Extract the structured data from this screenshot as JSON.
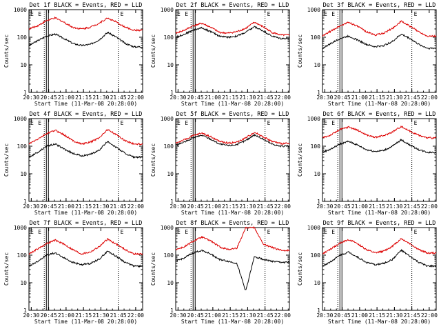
{
  "chart_data": [
    {
      "type": "line",
      "title": "Det 1f BLACK = Events, RED = LLD",
      "xlabel": "Start Time (11-Mar-08 20:28:00)",
      "ylabel": "Counts/sec",
      "series": [
        {
          "name": "BLACK = Events",
          "color": "#000000",
          "values": [
            50,
            75,
            110,
            130,
            90,
            60,
            50,
            55,
            80,
            150,
            100,
            60,
            45,
            45
          ]
        },
        {
          "name": "RED = LLD",
          "color": "#dd0000",
          "values": [
            200,
            260,
            400,
            500,
            350,
            230,
            200,
            230,
            320,
            500,
            350,
            230,
            180,
            180
          ]
        }
      ]
    },
    {
      "type": "line",
      "title": "Det 2f BLACK = Events, RED = LLD",
      "xlabel": "Start Time (11-Mar-08 20:28:00)",
      "ylabel": "Counts/sec",
      "series": [
        {
          "name": "BLACK = Events",
          "color": "#000000",
          "values": [
            100,
            130,
            180,
            220,
            160,
            110,
            100,
            110,
            150,
            240,
            170,
            110,
            90,
            90
          ]
        },
        {
          "name": "RED = LLD",
          "color": "#dd0000",
          "values": [
            140,
            180,
            260,
            320,
            230,
            150,
            140,
            160,
            210,
            350,
            240,
            150,
            120,
            120
          ]
        }
      ]
    },
    {
      "type": "line",
      "title": "Det 3f BLACK = Events, RED = LLD",
      "xlabel": "Start Time (11-Mar-08 20:28:00)",
      "ylabel": "Counts/sec",
      "series": [
        {
          "name": "BLACK = Events",
          "color": "#000000",
          "values": [
            40,
            60,
            90,
            110,
            80,
            55,
            45,
            50,
            70,
            130,
            90,
            55,
            40,
            40
          ]
        },
        {
          "name": "RED = LLD",
          "color": "#dd0000",
          "values": [
            110,
            170,
            260,
            350,
            250,
            160,
            120,
            140,
            210,
            380,
            250,
            160,
            110,
            110
          ]
        }
      ]
    },
    {
      "type": "line",
      "title": "Det 4f BLACK = Events, RED = LLD",
      "xlabel": "Start Time (11-Mar-08 20:28:00)",
      "ylabel": "Counts/sec",
      "series": [
        {
          "name": "BLACK = Events",
          "color": "#000000",
          "values": [
            40,
            60,
            100,
            120,
            80,
            55,
            45,
            50,
            70,
            150,
            90,
            55,
            40,
            40
          ]
        },
        {
          "name": "RED = LLD",
          "color": "#dd0000",
          "values": [
            120,
            180,
            280,
            380,
            260,
            160,
            120,
            140,
            200,
            400,
            260,
            160,
            120,
            120
          ]
        }
      ]
    },
    {
      "type": "line",
      "title": "Det 5f BLACK = Events, RED = LLD",
      "xlabel": "Start Time (11-Mar-08 20:28:00)",
      "ylabel": "Counts/sec",
      "series": [
        {
          "name": "BLACK = Events",
          "color": "#000000",
          "values": [
            110,
            140,
            200,
            250,
            180,
            120,
            105,
            115,
            160,
            260,
            180,
            120,
            100,
            100
          ]
        },
        {
          "name": "RED = LLD",
          "color": "#dd0000",
          "values": [
            130,
            170,
            240,
            300,
            220,
            150,
            130,
            140,
            200,
            320,
            220,
            150,
            125,
            125
          ]
        }
      ]
    },
    {
      "type": "line",
      "title": "Det 6f BLACK = Events, RED = LLD",
      "xlabel": "Start Time (11-Mar-08 20:28:00)",
      "ylabel": "Counts/sec",
      "series": [
        {
          "name": "BLACK = Events",
          "color": "#000000",
          "values": [
            60,
            80,
            120,
            150,
            110,
            75,
            65,
            70,
            100,
            170,
            110,
            75,
            60,
            60
          ]
        },
        {
          "name": "RED = LLD",
          "color": "#dd0000",
          "values": [
            200,
            260,
            400,
            500,
            380,
            260,
            210,
            240,
            330,
            520,
            350,
            250,
            200,
            200
          ]
        }
      ]
    },
    {
      "type": "line",
      "title": "Det 7f BLACK = Events, RED = LLD",
      "xlabel": "Start Time (11-Mar-08 20:28:00)",
      "ylabel": "Counts/sec",
      "series": [
        {
          "name": "BLACK = Events",
          "color": "#000000",
          "values": [
            40,
            60,
            100,
            120,
            80,
            55,
            45,
            50,
            70,
            140,
            90,
            55,
            40,
            40
          ]
        },
        {
          "name": "RED = LLD",
          "color": "#dd0000",
          "values": [
            110,
            170,
            260,
            350,
            250,
            160,
            110,
            130,
            200,
            380,
            250,
            160,
            110,
            110
          ]
        }
      ]
    },
    {
      "type": "line",
      "title": "Det 8f BLACK = Events, RED = LLD",
      "xlabel": "Start Time (11-Mar-08 20:28:00)",
      "ylabel": "Counts/sec",
      "series": [
        {
          "name": "BLACK = Events",
          "color": "#000000",
          "values": [
            60,
            80,
            120,
            150,
            110,
            70,
            60,
            50,
            5,
            90,
            70,
            60,
            55,
            55
          ]
        },
        {
          "name": "RED = LLD",
          "color": "#dd0000",
          "values": [
            160,
            200,
            320,
            450,
            330,
            200,
            160,
            180,
            1000,
            1000,
            250,
            190,
            150,
            150
          ]
        }
      ]
    },
    {
      "type": "line",
      "title": "Det 9f BLACK = Events, RED = LLD",
      "xlabel": "Start Time (11-Mar-08 20:28:00)",
      "ylabel": "Counts/sec",
      "series": [
        {
          "name": "BLACK = Events",
          "color": "#000000",
          "values": [
            40,
            60,
            100,
            130,
            85,
            55,
            45,
            50,
            70,
            150,
            90,
            55,
            40,
            40
          ]
        },
        {
          "name": "RED = LLD",
          "color": "#dd0000",
          "values": [
            110,
            170,
            270,
            370,
            260,
            160,
            120,
            140,
            210,
            400,
            260,
            160,
            120,
            120
          ]
        }
      ]
    }
  ],
  "shared_axes": {
    "x_ticks": [
      "20:30",
      "20:45",
      "21:00",
      "21:15",
      "21:30",
      "21:45",
      "22:00"
    ],
    "y_ticks": [
      "1",
      "10",
      "100",
      "1000"
    ],
    "ylim": [
      1,
      1000
    ],
    "y_scale": "log",
    "marker_labels": [
      "E",
      "E"
    ]
  }
}
